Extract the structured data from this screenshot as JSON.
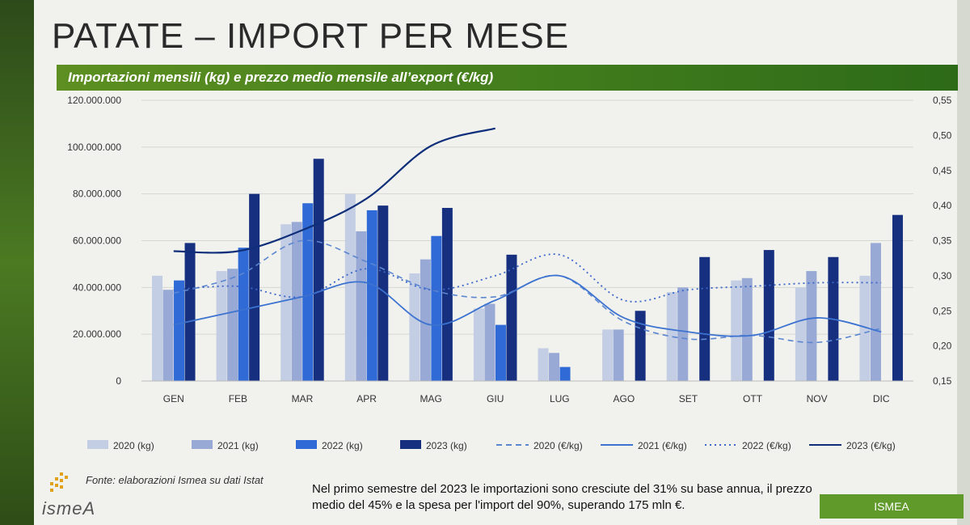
{
  "header": {
    "title": "PATATE – IMPORT PER MESE",
    "subtitle": "Importazioni mensili (kg) e prezzo medio mensile all’export (€/kg)"
  },
  "footer": {
    "source": "Fonte: elaborazioni Ismea su dati Istat",
    "note": "Nel primo semestre del 2023 le importazioni sono cresciute del 31% su base annua, il prezzo medio del 45% e la spesa per l'import del 90%, superando 175 mln €.",
    "brand": "ISMEA",
    "logo_text": "ismeA"
  },
  "colors": {
    "bar_2020": "#c3cde3",
    "bar_2021": "#98a9d5",
    "bar_2022": "#2f6ad6",
    "bar_2023": "#16307f",
    "line_2020": "#5c86d0",
    "line_2021": "#3d73d0",
    "line_2022": "#3c67c9",
    "line_2023": "#0f2f7a"
  },
  "chart_data": {
    "type": "bar",
    "categories": [
      "GEN",
      "FEB",
      "MAR",
      "APR",
      "MAG",
      "GIU",
      "LUG",
      "AGO",
      "SET",
      "OTT",
      "NOV",
      "DIC"
    ],
    "y_left": {
      "ylim": [
        0,
        120000000
      ],
      "ticks": [
        "0",
        "20.000.000",
        "40.000.000",
        "60.000.000",
        "80.000.000",
        "100.000.000",
        "120.000.000"
      ]
    },
    "y_right": {
      "ylim": [
        0.15,
        0.55
      ],
      "ticks": [
        "0,15",
        "0,20",
        "0,25",
        "0,30",
        "0,35",
        "0,40",
        "0,45",
        "0,50",
        "0,55"
      ]
    },
    "bar_series": [
      {
        "name": "2020 (kg)",
        "values": [
          45000000,
          47000000,
          67000000,
          80000000,
          46000000,
          31000000,
          14000000,
          22000000,
          38000000,
          43000000,
          40000000,
          45000000
        ]
      },
      {
        "name": "2021 (kg)",
        "values": [
          39000000,
          48000000,
          68000000,
          64000000,
          52000000,
          33000000,
          12000000,
          22000000,
          40000000,
          44000000,
          47000000,
          59000000
        ]
      },
      {
        "name": "2022 (kg)",
        "values": [
          43000000,
          57000000,
          76000000,
          73000000,
          62000000,
          24000000,
          6000000,
          null,
          null,
          null,
          null,
          null
        ]
      },
      {
        "name": "2023 (kg)",
        "values": [
          59000000,
          80000000,
          95000000,
          75000000,
          74000000,
          54000000,
          null,
          30000000,
          53000000,
          56000000,
          53000000,
          71000000
        ]
      }
    ],
    "line_series": [
      {
        "name": "2020 (€/kg)",
        "style": "dashed",
        "values": [
          0.275,
          0.3,
          0.35,
          0.32,
          0.28,
          0.27,
          0.3,
          0.235,
          0.21,
          0.215,
          0.205,
          0.225
        ]
      },
      {
        "name": "2021 (€/kg)",
        "style": "solid",
        "values": [
          0.23,
          0.25,
          0.27,
          0.29,
          0.23,
          0.265,
          0.3,
          0.24,
          0.22,
          0.215,
          0.24,
          0.22
        ]
      },
      {
        "name": "2022 (€/kg)",
        "style": "dotted",
        "values": [
          0.28,
          0.285,
          0.27,
          0.31,
          0.28,
          0.3,
          0.33,
          0.265,
          0.28,
          0.285,
          0.29,
          0.29
        ]
      },
      {
        "name": "2023 (€/kg)",
        "style": "solid",
        "values": [
          0.335,
          0.335,
          0.365,
          0.41,
          0.485,
          0.51,
          null,
          null,
          null,
          null,
          null,
          null
        ]
      }
    ],
    "legend_position": "bottom",
    "grid": true
  }
}
